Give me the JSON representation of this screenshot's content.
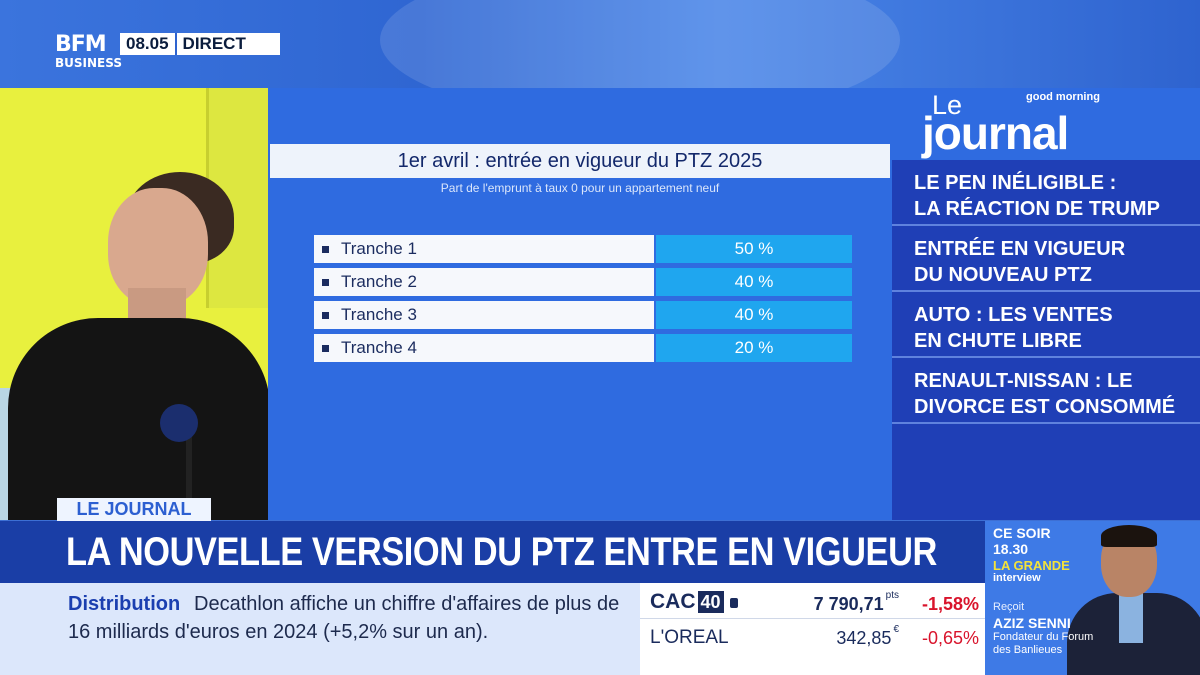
{
  "header": {
    "logo_line1": "BFM",
    "logo_line2": "BUSINESS",
    "time": "08.05",
    "live": "DIRECT"
  },
  "graphic": {
    "title": "1er avril : entrée en vigueur du PTZ 2025",
    "subtitle": "Part de l'emprunt à taux 0 pour un appartement neuf",
    "rows": [
      {
        "label": "Tranche 1",
        "value": "50 %"
      },
      {
        "label": "Tranche 2",
        "value": "40 %"
      },
      {
        "label": "Tranche 3",
        "value": "40 %"
      },
      {
        "label": "Tranche 4",
        "value": "20 %"
      }
    ]
  },
  "journal": {
    "le": "Le",
    "word": "journal",
    "brand": "good morning",
    "items": [
      {
        "line1": "LE PEN INÉLIGIBLE :",
        "line2": "LA RÉACTION DE TRUMP"
      },
      {
        "line1": "ENTRÉE EN VIGUEUR",
        "line2": "DU NOUVEAU PTZ"
      },
      {
        "line1": "AUTO : LES VENTES",
        "line2": "EN CHUTE LIBRE"
      },
      {
        "line1": "RENAULT-NISSAN : LE",
        "line2": "DIVORCE EST CONSOMMÉ"
      }
    ]
  },
  "lower_third": {
    "tag": "LE JOURNAL",
    "headline": "LA NOUVELLE VERSION DU PTZ ENTRE EN VIGUEUR"
  },
  "ticker": {
    "category": "Distribution",
    "line1": "Decathlon affiche un chiffre d'affaires de plus de",
    "line2": "16 milliards d'euros en 2024 (+5,2% sur un an)."
  },
  "market": {
    "index_name": "CAC",
    "index_num": "40",
    "index_value": "7 790,71",
    "index_unit": "pts",
    "index_change": "-1,58%",
    "stock_name": "L'OREAL",
    "stock_value": "342,85",
    "stock_unit": "€",
    "stock_change": "-0,65%"
  },
  "promo": {
    "line1": "CE SOIR",
    "line2": "18.30",
    "line3": "LA GRANDE",
    "line4": "interview",
    "line5": "Reçoit",
    "guest_name": "AZIZ SENNI",
    "guest_title": "Fondateur du Forum des Banlieues"
  },
  "colors": {
    "bfm_blue": "#2f6be0",
    "headline_bg": "#1a3ea6",
    "value_cell": "#1fa6ef",
    "negative": "#d9142c",
    "promo_yellow": "#f3e23a"
  }
}
